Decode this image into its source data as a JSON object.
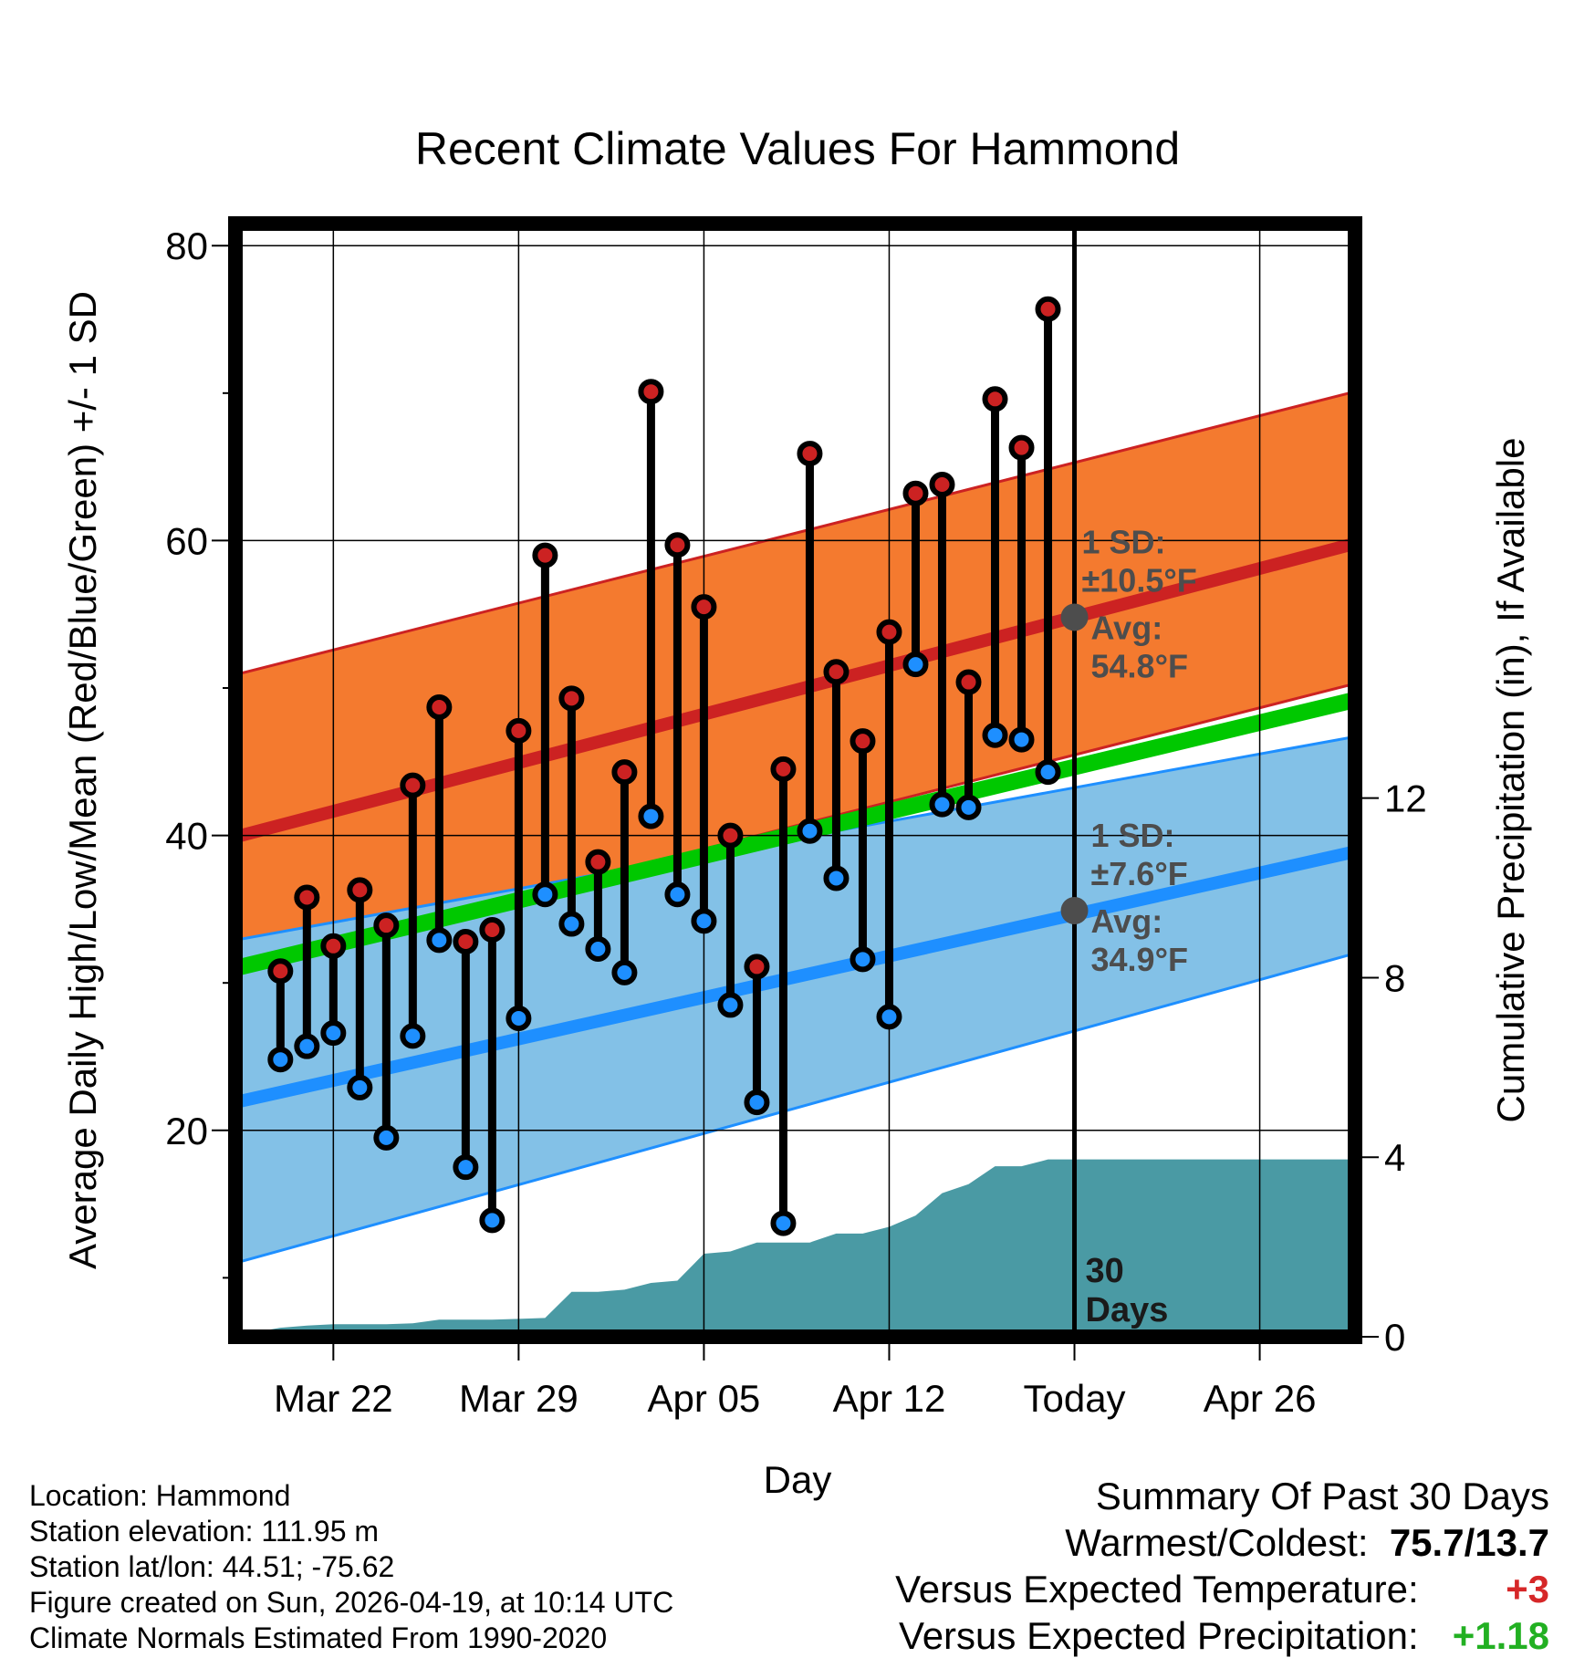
{
  "chart_data": {
    "type": "line",
    "title": "Recent Climate Values For Hammond",
    "xlabel": "Day",
    "ylabel": "Average Daily High/Low/Mean (Red/Blue/Green) +/- 1 SD",
    "ylabel_right": "Cumulative Precipitation (in), If Available",
    "xlim_days": [
      -31.7,
      10.6
    ],
    "ylim": [
      6,
      81.5
    ],
    "ylim_right": [
      0,
      24.8
    ],
    "x_ticks": [
      {
        "day": -28,
        "label": "Mar 22"
      },
      {
        "day": -21,
        "label": "Mar 29"
      },
      {
        "day": -14,
        "label": "Apr 05"
      },
      {
        "day": -7,
        "label": "Apr 12"
      },
      {
        "day": 0,
        "label": "Today"
      },
      {
        "day": 7,
        "label": "Apr 26"
      }
    ],
    "y_ticks_major": [
      20,
      40,
      60,
      80
    ],
    "y_ticks_minor": [
      10,
      30,
      50,
      70
    ],
    "y_ticks_right": [
      0,
      4,
      8,
      12
    ],
    "normals": {
      "high_mean": {
        "start": 39.9,
        "end": 59.8
      },
      "high_sd_upper": {
        "start": 50.9,
        "end": 70.1
      },
      "high_sd_lower": {
        "start": 31.0,
        "end": 50.3
      },
      "low_mean": {
        "start": 21.9,
        "end": 38.9
      },
      "low_sd_upper": {
        "start": 32.9,
        "end": 46.7
      },
      "low_sd_lower": {
        "start": 11.0,
        "end": 32.0
      },
      "mean_mean": {
        "start": 31.0,
        "end": 49.2
      }
    },
    "daily": {
      "days": [
        -30,
        -29,
        -28,
        -27,
        -26,
        -25,
        -24,
        -23,
        -22,
        -21,
        -20,
        -19,
        -18,
        -17,
        -16,
        -15,
        -14,
        -13,
        -12,
        -11,
        -10,
        -9,
        -8,
        -7,
        -6,
        -5,
        -4,
        -3,
        -2,
        -1
      ],
      "highs": [
        30.8,
        35.8,
        32.5,
        36.3,
        33.9,
        43.4,
        48.7,
        32.8,
        33.6,
        47.1,
        59.0,
        49.3,
        38.2,
        44.3,
        70.1,
        59.7,
        55.5,
        40.0,
        31.1,
        44.5,
        65.9,
        51.1,
        46.4,
        53.8,
        63.2,
        63.8,
        50.4,
        69.6,
        66.3,
        75.7
      ],
      "lows": [
        24.8,
        25.7,
        26.6,
        22.9,
        19.5,
        26.4,
        32.9,
        17.5,
        13.9,
        27.6,
        36.0,
        34.0,
        32.3,
        30.7,
        41.3,
        36.0,
        34.2,
        28.5,
        21.9,
        13.7,
        40.3,
        37.1,
        31.6,
        27.7,
        51.6,
        42.1,
        41.9,
        46.8,
        46.5,
        44.3
      ]
    },
    "precip": {
      "days": [
        -31.7,
        -30.5,
        -30,
        -29,
        -28,
        -27,
        -26,
        -25,
        -24,
        -23,
        -22,
        -21,
        -20,
        -19,
        -18,
        -17,
        -16,
        -15,
        -14,
        -13,
        -12,
        -11,
        -10,
        -9,
        -8,
        -7,
        -6,
        -5,
        -4,
        -3,
        -2,
        -1,
        0,
        10.6
      ],
      "values": [
        0,
        0.15,
        0.2,
        0.25,
        0.28,
        0.28,
        0.28,
        0.3,
        0.38,
        0.38,
        0.38,
        0.4,
        0.42,
        1.0,
        1.0,
        1.05,
        1.2,
        1.25,
        1.85,
        1.9,
        2.1,
        2.1,
        2.1,
        2.3,
        2.3,
        2.45,
        2.7,
        3.2,
        3.4,
        3.8,
        3.8,
        3.95,
        3.95,
        3.95
      ]
    },
    "today_markers": {
      "high": {
        "sd_label": "1 SD:",
        "sd_value": "±10.5°F",
        "avg_label": "Avg:",
        "avg_value": "54.8°F",
        "value": 54.8
      },
      "low": {
        "sd_label": "1 SD:",
        "sd_value": "±7.6°F",
        "avg_label": "Avg:",
        "avg_value": "34.9°F",
        "value": 34.9
      },
      "days_label": [
        "30",
        "Days"
      ]
    },
    "colors": {
      "high_band": "#f47a2f",
      "high_line": "#cc2222",
      "low_band": "#83c1e7",
      "low_line": "#1e8fff",
      "mean_line": "#00c800",
      "precip": "#4a9aa4",
      "high_dot": "#cc2222",
      "low_dot": "#1e8fff"
    }
  },
  "info": {
    "location": "Location: Hammond",
    "elevation": "Station elevation: 111.95 m",
    "latlon": "Station lat/lon: 44.51; -75.62",
    "created": "Figure created on Sun, 2026-04-19, at 10:14 UTC",
    "normals": "Climate Normals Estimated From 1990-2020"
  },
  "summary": {
    "title": "Summary Of Past 30 Days",
    "warm_label": "Warmest/Coldest:",
    "warm_value": "75.7/13.7",
    "temp_label": "Versus Expected Temperature:",
    "temp_value": "+3",
    "precip_label": "Versus Expected Precipitation:",
    "precip_value": "+1.18"
  }
}
